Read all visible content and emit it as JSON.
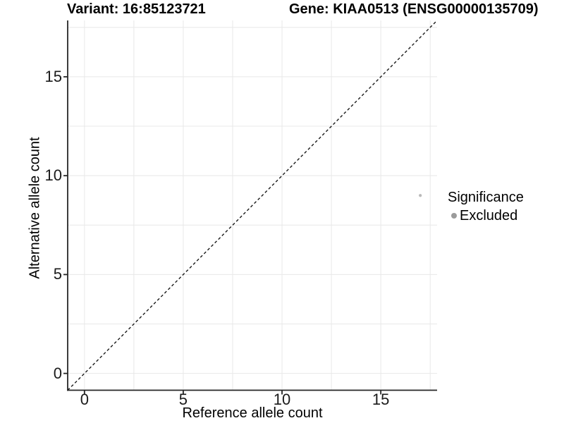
{
  "chart_data": {
    "type": "scatter",
    "title_left": "Variant: 16:85123721",
    "title_right": "Gene: KIAA0513 (ENSG00000135709)",
    "xlabel": "Reference allele count",
    "ylabel": "Alternative allele count",
    "xlim": [
      -0.85,
      17.85
    ],
    "ylim": [
      -0.85,
      17.85
    ],
    "x_ticks": {
      "values": [
        0,
        5,
        10,
        15
      ],
      "labels": [
        "0",
        "5",
        "10",
        "15"
      ]
    },
    "y_ticks": {
      "values": [
        0,
        5,
        10,
        15
      ],
      "labels": [
        "0",
        "5",
        "10",
        "15"
      ]
    },
    "gridlines": {
      "major": [
        0,
        5,
        10,
        15
      ],
      "minor": [
        2.5,
        7.5,
        12.5,
        17.5
      ]
    },
    "grid": "on",
    "series": [
      {
        "name": "Excluded",
        "color": "#b9b9b9",
        "points": [
          {
            "x": 17,
            "y": 9
          }
        ]
      }
    ],
    "identity_line": {
      "style": "dashed",
      "color": "#1a1a1a",
      "from": [
        -0.85,
        -0.85
      ],
      "to": [
        17.85,
        17.85
      ]
    },
    "legend": {
      "title": "Significance",
      "position": "right",
      "items": [
        {
          "label": "Excluded",
          "color": "#9b9b9b",
          "marker": "circle"
        }
      ]
    },
    "colors": {
      "grid": "#e8e8e8",
      "axis": "#262626",
      "panel_background": "#ffffff",
      "title_text": "#000000",
      "tick_text": "#1a1a1a"
    }
  }
}
